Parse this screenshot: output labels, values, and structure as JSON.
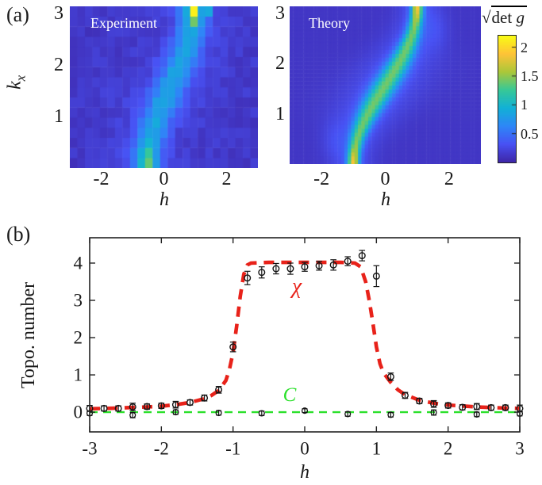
{
  "panel_a": {
    "label": "(a)",
    "experiment": {
      "title": "Experiment",
      "xlabel": "h",
      "ylabel_main": "k",
      "ylabel_sub": "x",
      "xticks": [
        "-2",
        "0",
        "2"
      ],
      "yticks": [
        "1",
        "2",
        "3"
      ]
    },
    "theory": {
      "title": "Theory",
      "xlabel": "h",
      "xticks": [
        "-2",
        "0",
        "2"
      ],
      "yticks": [
        "1",
        "2",
        "3"
      ]
    },
    "colorbar": {
      "sqrt_sign": "√",
      "title_roman": "det ",
      "title_italic": "g",
      "ticks": [
        "0.5",
        "1",
        "1.5",
        "2"
      ]
    }
  },
  "panel_b": {
    "label": "(b)",
    "ylabel": "Topo. number",
    "xlabel": "h",
    "chi_label": "χ",
    "c_label": "C",
    "xticks": [
      "-3",
      "-2",
      "-1",
      "0",
      "1",
      "2",
      "3"
    ],
    "yticks": [
      "0",
      "1",
      "2",
      "3",
      "4"
    ]
  },
  "colors": {
    "chi_red": "#e8221a",
    "c_green": "#2be02b",
    "marker_black": "#141414",
    "axis_black": "#222222",
    "heat_text_white": "#ffffff",
    "colormap_parula": [
      "#3e26a8",
      "#4852f4",
      "#2e87f7",
      "#12b1d6",
      "#37c897",
      "#abc739",
      "#fec338",
      "#f9fb15"
    ]
  },
  "chart_data": [
    {
      "type": "heatmap",
      "title": "Experiment",
      "xlabel": "h",
      "ylabel": "k_x",
      "x_range": [
        -3,
        3
      ],
      "k_range": [
        0,
        3.1416
      ],
      "value_range": [
        0,
        2.2
      ],
      "grid": [
        25,
        16
      ],
      "bg": 0.13,
      "band": {
        "offset": 0.2,
        "scale": 0.75,
        "note": "ridge follows h = 0.2 - 0.75*cos(kx)"
      },
      "sigma": {
        "base": 0.3,
        "mid": 0.08
      },
      "amp": {
        "base": 0.62,
        "edge": 0.3,
        "edge_width": 0.35
      },
      "glow": {
        "amp": 0.1,
        "mult": 3.0
      },
      "noise": 0.06,
      "hotspots": [
        {
          "h": 0.93,
          "k": 3.05,
          "v": 1.05,
          "sh": 0.1,
          "sk": 0.1
        },
        {
          "h": 1.38,
          "k": 3.08,
          "v": 0.75,
          "sh": 0.1,
          "sk": 0.09
        },
        {
          "h": 0.95,
          "k": 2.88,
          "v": 0.45,
          "sh": 0.11,
          "sk": 0.1
        },
        {
          "h": -0.55,
          "k": 0.12,
          "v": 0.55,
          "sh": 0.1,
          "sk": 0.12
        },
        {
          "h": -0.5,
          "k": 0.38,
          "v": 0.3,
          "sh": 0.12,
          "sk": 0.12
        }
      ]
    },
    {
      "type": "heatmap",
      "title": "Theory",
      "xlabel": "h",
      "ylabel": "k_x",
      "x_range": [
        -3,
        3
      ],
      "k_range": [
        0,
        3.1416
      ],
      "value_range": [
        0,
        2.2
      ],
      "grid": [
        56,
        40
      ],
      "bg": 0.12,
      "band": {
        "offset": 0.0,
        "scale": 1.0,
        "note": "ridge follows h = -cos(kx)"
      },
      "sigma": {
        "base": 0.13,
        "mid": 0.15
      },
      "amp": {
        "base": 1.1,
        "edge": 0.45,
        "edge_width": 0.28
      },
      "glow": {
        "amp": 0.2,
        "mult": 3.2
      },
      "noise": 0,
      "hotspots": [
        {
          "h": -1.55,
          "k": 0.45,
          "v": 0.12,
          "sh": 0.45,
          "sk": 0.45
        },
        {
          "h": 1.55,
          "k": 2.7,
          "v": 0.12,
          "sh": 0.45,
          "sk": 0.45
        }
      ]
    },
    {
      "type": "line+scatter",
      "title": "Topological number vs h",
      "xlabel": "h",
      "ylabel": "Topo. number",
      "xlim": [
        -3,
        3
      ],
      "ylim": [
        -0.53,
        4.68
      ],
      "xticks": [
        -3,
        -2,
        -1,
        0,
        1,
        2,
        3
      ],
      "yticks": [
        0,
        1,
        2,
        3,
        4
      ],
      "series": [
        {
          "name": "chi_experimental_points",
          "marker": "open-circle",
          "h": [
            -3.0,
            -2.8,
            -2.6,
            -2.4,
            -2.2,
            -2.0,
            -1.8,
            -1.6,
            -1.4,
            -1.2,
            -1.0,
            -0.8,
            -0.6,
            -0.4,
            -0.2,
            0.0,
            0.2,
            0.4,
            0.6,
            0.8,
            1.0,
            1.2,
            1.4,
            1.6,
            1.8,
            2.0,
            2.2,
            2.4,
            2.6,
            2.8,
            3.0
          ],
          "values": [
            0.1,
            0.1,
            0.1,
            0.14,
            0.15,
            0.17,
            0.2,
            0.26,
            0.38,
            0.6,
            1.75,
            3.6,
            3.75,
            3.85,
            3.85,
            3.9,
            3.93,
            3.95,
            4.05,
            4.2,
            3.65,
            0.95,
            0.45,
            0.3,
            0.22,
            0.18,
            0.13,
            0.15,
            0.12,
            0.12,
            0.1
          ],
          "errors": [
            0.08,
            0.07,
            0.07,
            0.1,
            0.07,
            0.07,
            0.09,
            0.07,
            0.08,
            0.09,
            0.13,
            0.18,
            0.15,
            0.14,
            0.15,
            0.12,
            0.12,
            0.14,
            0.12,
            0.14,
            0.28,
            0.1,
            0.08,
            0.07,
            0.09,
            0.07,
            0.07,
            0.08,
            0.07,
            0.07,
            0.09
          ]
        },
        {
          "name": "chi_theory_curve",
          "style": "dashed-red",
          "points": [
            [
              -3,
              0.09
            ],
            [
              -2.6,
              0.11
            ],
            [
              -2.2,
              0.14
            ],
            [
              -2.0,
              0.16
            ],
            [
              -1.8,
              0.2
            ],
            [
              -1.6,
              0.26
            ],
            [
              -1.4,
              0.36
            ],
            [
              -1.3,
              0.45
            ],
            [
              -1.2,
              0.58
            ],
            [
              -1.1,
              0.85
            ],
            [
              -1.05,
              1.15
            ],
            [
              -1.0,
              1.6
            ],
            [
              -0.95,
              2.3
            ],
            [
              -0.9,
              3.1
            ],
            [
              -0.85,
              3.7
            ],
            [
              -0.8,
              3.95
            ],
            [
              -0.75,
              4.0
            ],
            [
              -0.5,
              4.02
            ],
            [
              0,
              4.02
            ],
            [
              0.5,
              4.02
            ],
            [
              0.7,
              4.0
            ],
            [
              0.78,
              3.9
            ],
            [
              0.85,
              3.5
            ],
            [
              0.9,
              3.0
            ],
            [
              0.95,
              2.4
            ],
            [
              1.0,
              1.75
            ],
            [
              1.05,
              1.3
            ],
            [
              1.1,
              1.05
            ],
            [
              1.2,
              0.8
            ],
            [
              1.3,
              0.6
            ],
            [
              1.4,
              0.47
            ],
            [
              1.6,
              0.32
            ],
            [
              1.8,
              0.24
            ],
            [
              2.0,
              0.19
            ],
            [
              2.4,
              0.14
            ],
            [
              2.8,
              0.11
            ],
            [
              3.0,
              0.1
            ]
          ]
        },
        {
          "name": "C_experimental_points",
          "marker": "open-circle",
          "h": [
            -3.0,
            -2.4,
            -1.8,
            -1.2,
            -0.6,
            0.0,
            0.6,
            1.2,
            1.8,
            2.4,
            3.0
          ],
          "values": [
            -0.03,
            -0.08,
            0.0,
            -0.02,
            -0.03,
            0.04,
            -0.05,
            -0.07,
            -0.01,
            -0.06,
            -0.04
          ],
          "errors": [
            0.06,
            0.07,
            0.06,
            0.06,
            0.06,
            0.05,
            0.06,
            0.06,
            0.07,
            0.06,
            0.06
          ]
        },
        {
          "name": "C_theory_line",
          "style": "dashed-green",
          "points": [
            [
              -3,
              0.0
            ],
            [
              3,
              0.0
            ]
          ]
        }
      ]
    }
  ]
}
